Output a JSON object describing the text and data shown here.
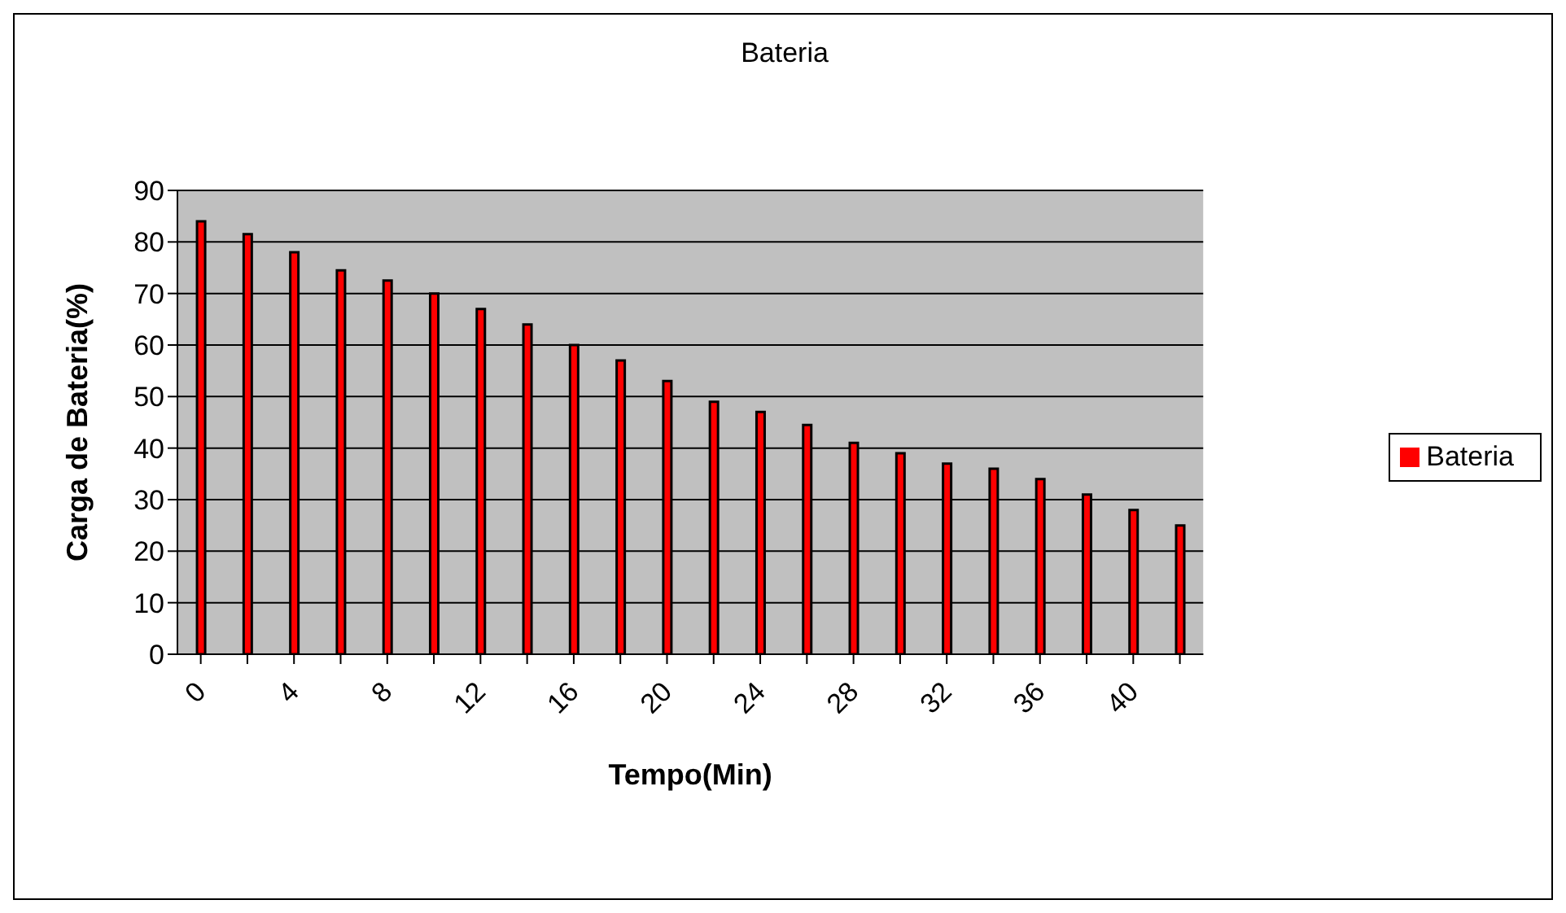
{
  "chart_data": {
    "type": "bar",
    "title": "Bateria",
    "xlabel": "Tempo(Min)",
    "ylabel": "Carga de Bateria(%)",
    "categories": [
      "0",
      null,
      "4",
      null,
      "8",
      null,
      "12",
      null,
      "16",
      null,
      "20",
      null,
      "24",
      null,
      "28",
      null,
      "32",
      null,
      "36",
      null,
      "40",
      null
    ],
    "series": [
      {
        "name": "Bateria",
        "color": "#ff0000",
        "values": [
          84,
          81.5,
          78,
          74.5,
          72.5,
          70,
          67,
          64,
          60,
          57,
          53,
          49,
          47,
          44.5,
          41,
          39,
          37,
          36,
          34,
          31,
          28,
          25
        ]
      }
    ],
    "ylim": [
      0,
      90
    ],
    "yticks": [
      0,
      10,
      20,
      30,
      40,
      50,
      60,
      70,
      80,
      90
    ],
    "grid": "y",
    "legend": "right"
  }
}
